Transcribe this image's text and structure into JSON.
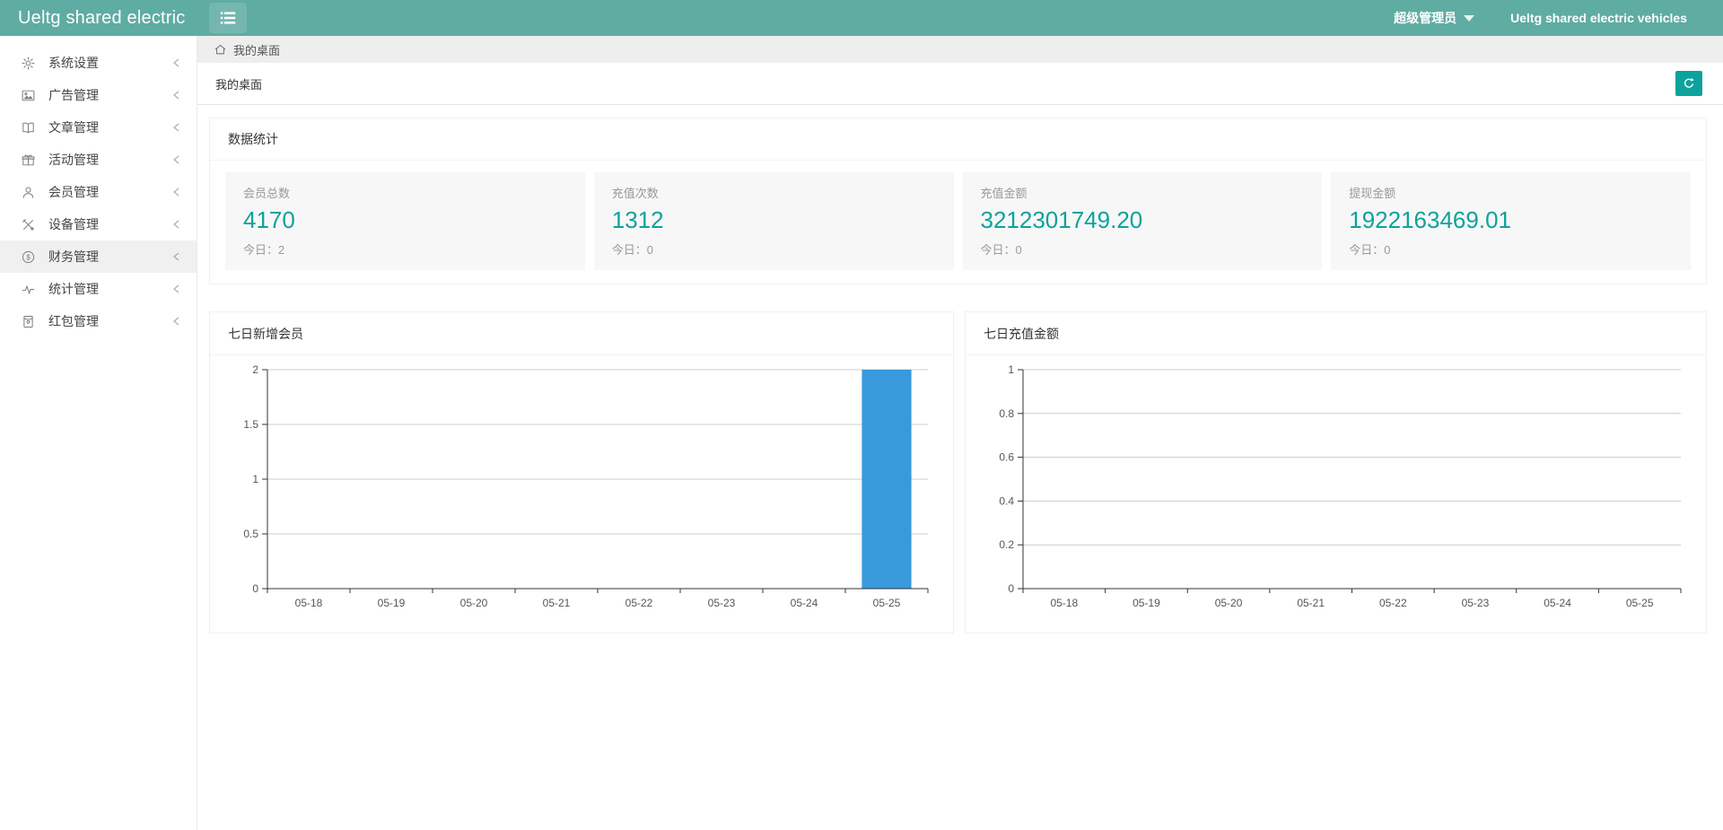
{
  "header": {
    "app_title": "Ueltg shared electric",
    "user_role": "超级管理员",
    "brand_right": "Ueltg shared electric vehicles"
  },
  "sidebar": {
    "items": [
      {
        "label": "系统设置",
        "icon": "gear-icon",
        "active": false
      },
      {
        "label": "广告管理",
        "icon": "image-icon",
        "active": false
      },
      {
        "label": "文章管理",
        "icon": "book-icon",
        "active": false
      },
      {
        "label": "活动管理",
        "icon": "gift-icon",
        "active": false
      },
      {
        "label": "会员管理",
        "icon": "user-icon",
        "active": false
      },
      {
        "label": "设备管理",
        "icon": "tools-icon",
        "active": false
      },
      {
        "label": "财务管理",
        "icon": "finance-icon",
        "active": true
      },
      {
        "label": "统计管理",
        "icon": "pulse-icon",
        "active": false
      },
      {
        "label": "红包管理",
        "icon": "red-packet-icon",
        "active": false
      }
    ]
  },
  "breadcrumb": {
    "icon": "home-icon",
    "label": "我的桌面"
  },
  "tabbar": {
    "title": "我的桌面",
    "refresh_icon": "refresh-icon"
  },
  "stats_panel": {
    "title": "数据统计",
    "cards": [
      {
        "label": "会员总数",
        "value": "4170",
        "today_label": "今日：",
        "today": "2"
      },
      {
        "label": "充值次数",
        "value": "1312",
        "today_label": "今日：",
        "today": "0"
      },
      {
        "label": "充值金额",
        "value": "3212301749.20",
        "today_label": "今日：",
        "today": "0"
      },
      {
        "label": "提现金额",
        "value": "1922163469.01",
        "today_label": "今日：",
        "today": "0"
      }
    ]
  },
  "chart_data": [
    {
      "type": "bar",
      "title": "七日新增会员",
      "categories": [
        "05-18",
        "05-19",
        "05-20",
        "05-21",
        "05-22",
        "05-23",
        "05-24",
        "05-25"
      ],
      "values": [
        0,
        0,
        0,
        0,
        0,
        0,
        0,
        2
      ],
      "xlabel": "",
      "ylabel": "",
      "ylim": [
        0,
        2
      ],
      "yticks": [
        0,
        0.5,
        1,
        1.5,
        2
      ],
      "grid": true,
      "legend": false,
      "bar_color": "#3A99DB"
    },
    {
      "type": "bar",
      "title": "七日充值金额",
      "categories": [
        "05-18",
        "05-19",
        "05-20",
        "05-21",
        "05-22",
        "05-23",
        "05-24",
        "05-25"
      ],
      "values": [
        0,
        0,
        0,
        0,
        0,
        0,
        0,
        0
      ],
      "xlabel": "",
      "ylabel": "",
      "ylim": [
        0,
        1
      ],
      "yticks": [
        0,
        0.2,
        0.4,
        0.6,
        0.8,
        1
      ],
      "grid": true,
      "legend": false,
      "bar_color": "#3A99DB"
    }
  ],
  "colors": {
    "header_bg": "#5FACA3",
    "accent_teal": "#0DA29B",
    "bar_blue": "#3A99DB",
    "card_bg": "#f7f7f7",
    "grid_line": "#cccccc",
    "axis_line": "#333333"
  }
}
